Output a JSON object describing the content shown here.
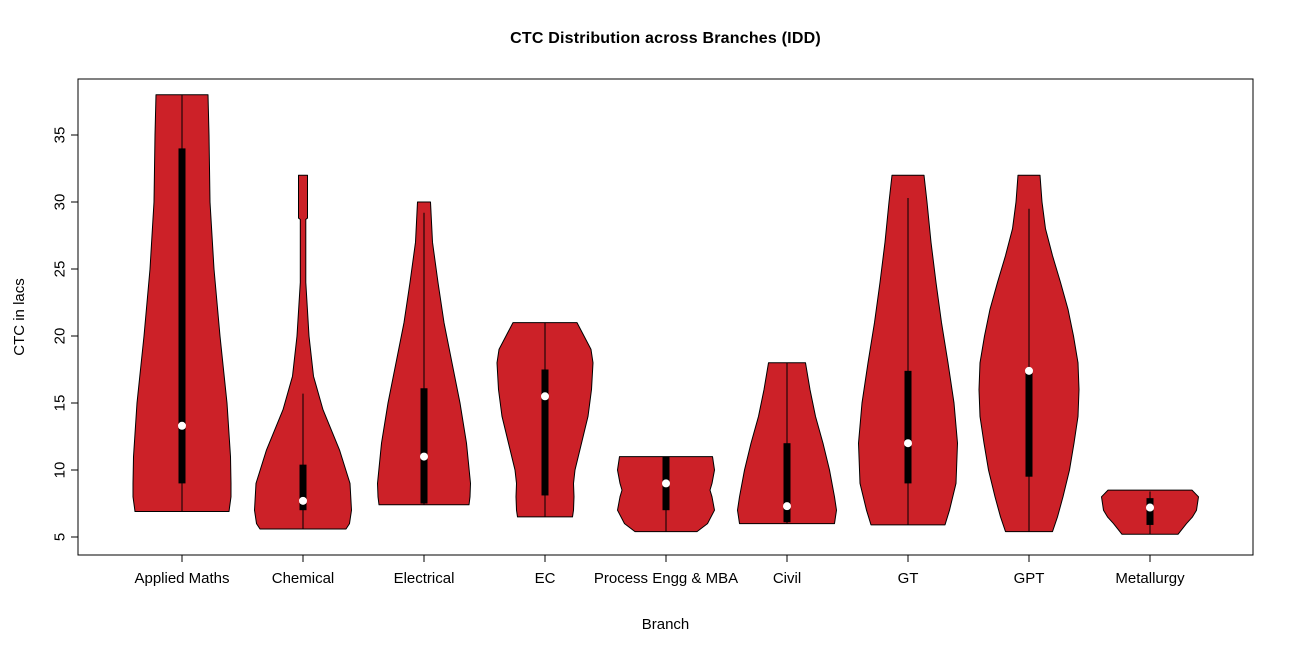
{
  "title": "CTC Distribution across Branches (IDD)",
  "x_axis": {
    "label": "Branch"
  },
  "y_axis": {
    "label": "CTC in lacs",
    "ticks": [
      5,
      10,
      15,
      20,
      25,
      30,
      35
    ]
  },
  "colors": {
    "violin_fill": "#CC2128",
    "violin_stroke": "#000000",
    "box": "#000000",
    "median_dot": "#FFFFFF",
    "axis": "#000000",
    "text": "#000000",
    "background": "#FFFFFF"
  },
  "chart_data": {
    "type": "violin",
    "title": "CTC Distribution across Branches (IDD)",
    "xlabel": "Branch",
    "ylabel": "CTC in lacs",
    "ylim": [
      3.7,
      39.2
    ],
    "yticks": [
      5,
      10,
      15,
      20,
      25,
      30,
      35
    ],
    "grid": false,
    "legend": "none",
    "categories": [
      "Applied Maths",
      "Chemical",
      "Electrical",
      "EC",
      "Process Engg & MBA",
      "Civil",
      "GT",
      "GPT",
      "Metallurgy"
    ],
    "series": [
      {
        "name": "Applied Maths",
        "median": 13.3,
        "q1": 9.0,
        "q3": 34.0,
        "whisker_low": 6.9,
        "whisker_high": 38.0,
        "violin_min": 6.9,
        "violin_max": 38.0,
        "density_profile": [
          [
            38,
            0.52
          ],
          [
            35,
            0.54
          ],
          [
            30,
            0.56
          ],
          [
            25,
            0.64
          ],
          [
            20,
            0.76
          ],
          [
            15,
            0.9
          ],
          [
            11,
            0.97
          ],
          [
            9,
            0.98
          ],
          [
            8,
            0.98
          ],
          [
            6.9,
            0.94
          ]
        ]
      },
      {
        "name": "Chemical",
        "median": 7.7,
        "q1": 7.0,
        "q3": 10.4,
        "whisker_low": 5.6,
        "whisker_high": 15.7,
        "violin_min": 5.6,
        "violin_max": 32.0,
        "density_profile": [
          [
            32,
            0.09
          ],
          [
            28.8,
            0.09
          ],
          [
            28.7,
            0.055
          ],
          [
            24,
            0.055
          ],
          [
            20,
            0.12
          ],
          [
            17,
            0.21
          ],
          [
            14.5,
            0.4
          ],
          [
            11.5,
            0.73
          ],
          [
            9,
            0.94
          ],
          [
            7,
            0.97
          ],
          [
            6,
            0.93
          ],
          [
            5.6,
            0.86
          ]
        ]
      },
      {
        "name": "Electrical",
        "median": 11.0,
        "q1": 7.5,
        "q3": 16.1,
        "whisker_low": 7.4,
        "whisker_high": 29.2,
        "violin_min": 7.4,
        "violin_max": 30.0,
        "density_profile": [
          [
            30,
            0.13
          ],
          [
            27,
            0.17
          ],
          [
            24,
            0.28
          ],
          [
            21,
            0.4
          ],
          [
            18,
            0.56
          ],
          [
            15,
            0.72
          ],
          [
            12,
            0.85
          ],
          [
            9,
            0.93
          ],
          [
            8,
            0.92
          ],
          [
            7.4,
            0.9
          ]
        ]
      },
      {
        "name": "EC",
        "median": 15.5,
        "q1": 8.1,
        "q3": 17.5,
        "whisker_low": 6.5,
        "whisker_high": 21.0,
        "violin_min": 6.5,
        "violin_max": 21.0,
        "density_profile": [
          [
            21,
            0.64
          ],
          [
            20,
            0.78
          ],
          [
            19,
            0.92
          ],
          [
            18,
            0.96
          ],
          [
            16,
            0.93
          ],
          [
            14,
            0.86
          ],
          [
            12,
            0.73
          ],
          [
            10,
            0.6
          ],
          [
            9,
            0.57
          ],
          [
            8,
            0.58
          ],
          [
            7,
            0.57
          ],
          [
            6.5,
            0.55
          ]
        ]
      },
      {
        "name": "Process Engg & MBA",
        "median": 9.0,
        "q1": 7.0,
        "q3": 11.0,
        "whisker_low": 5.4,
        "whisker_high": 11.0,
        "violin_min": 5.4,
        "violin_max": 11.0,
        "density_profile": [
          [
            11,
            0.93
          ],
          [
            10,
            0.97
          ],
          [
            9,
            0.92
          ],
          [
            8.5,
            0.88
          ],
          [
            8,
            0.92
          ],
          [
            7,
            0.97
          ],
          [
            6,
            0.83
          ],
          [
            5.4,
            0.62
          ]
        ]
      },
      {
        "name": "Civil",
        "median": 7.3,
        "q1": 6.1,
        "q3": 12.0,
        "whisker_low": 6.0,
        "whisker_high": 18.0,
        "violin_min": 6.0,
        "violin_max": 18.0,
        "density_profile": [
          [
            18,
            0.37
          ],
          [
            16,
            0.46
          ],
          [
            14,
            0.57
          ],
          [
            12,
            0.72
          ],
          [
            10,
            0.85
          ],
          [
            8,
            0.95
          ],
          [
            7,
            0.99
          ],
          [
            6,
            0.95
          ]
        ]
      },
      {
        "name": "GT",
        "median": 12.0,
        "q1": 9.0,
        "q3": 17.4,
        "whisker_low": 5.9,
        "whisker_high": 30.3,
        "violin_min": 5.9,
        "violin_max": 32.0,
        "density_profile": [
          [
            32,
            0.32
          ],
          [
            30,
            0.38
          ],
          [
            27,
            0.46
          ],
          [
            24,
            0.56
          ],
          [
            21,
            0.67
          ],
          [
            18,
            0.8
          ],
          [
            15,
            0.92
          ],
          [
            12,
            0.99
          ],
          [
            9,
            0.96
          ],
          [
            7,
            0.83
          ],
          [
            5.9,
            0.74
          ]
        ]
      },
      {
        "name": "GPT",
        "median": 17.4,
        "q1": 9.5,
        "q3": 17.4,
        "whisker_low": 5.4,
        "whisker_high": 29.5,
        "violin_min": 5.4,
        "violin_max": 32.0,
        "density_profile": [
          [
            32,
            0.22
          ],
          [
            30,
            0.26
          ],
          [
            28,
            0.33
          ],
          [
            26,
            0.47
          ],
          [
            24,
            0.63
          ],
          [
            22,
            0.78
          ],
          [
            20,
            0.89
          ],
          [
            18,
            0.98
          ],
          [
            16,
            1.0
          ],
          [
            14,
            0.98
          ],
          [
            12,
            0.9
          ],
          [
            10,
            0.81
          ],
          [
            8,
            0.68
          ],
          [
            6.5,
            0.57
          ],
          [
            5.4,
            0.47
          ]
        ]
      },
      {
        "name": "Metallurgy",
        "median": 7.2,
        "q1": 5.9,
        "q3": 7.9,
        "whisker_low": 5.2,
        "whisker_high": 8.4,
        "violin_min": 5.2,
        "violin_max": 8.5,
        "density_profile": [
          [
            8.5,
            0.84
          ],
          [
            8,
            0.97
          ],
          [
            7,
            0.93
          ],
          [
            6.5,
            0.85
          ],
          [
            6,
            0.73
          ],
          [
            5.2,
            0.56
          ]
        ]
      }
    ]
  }
}
